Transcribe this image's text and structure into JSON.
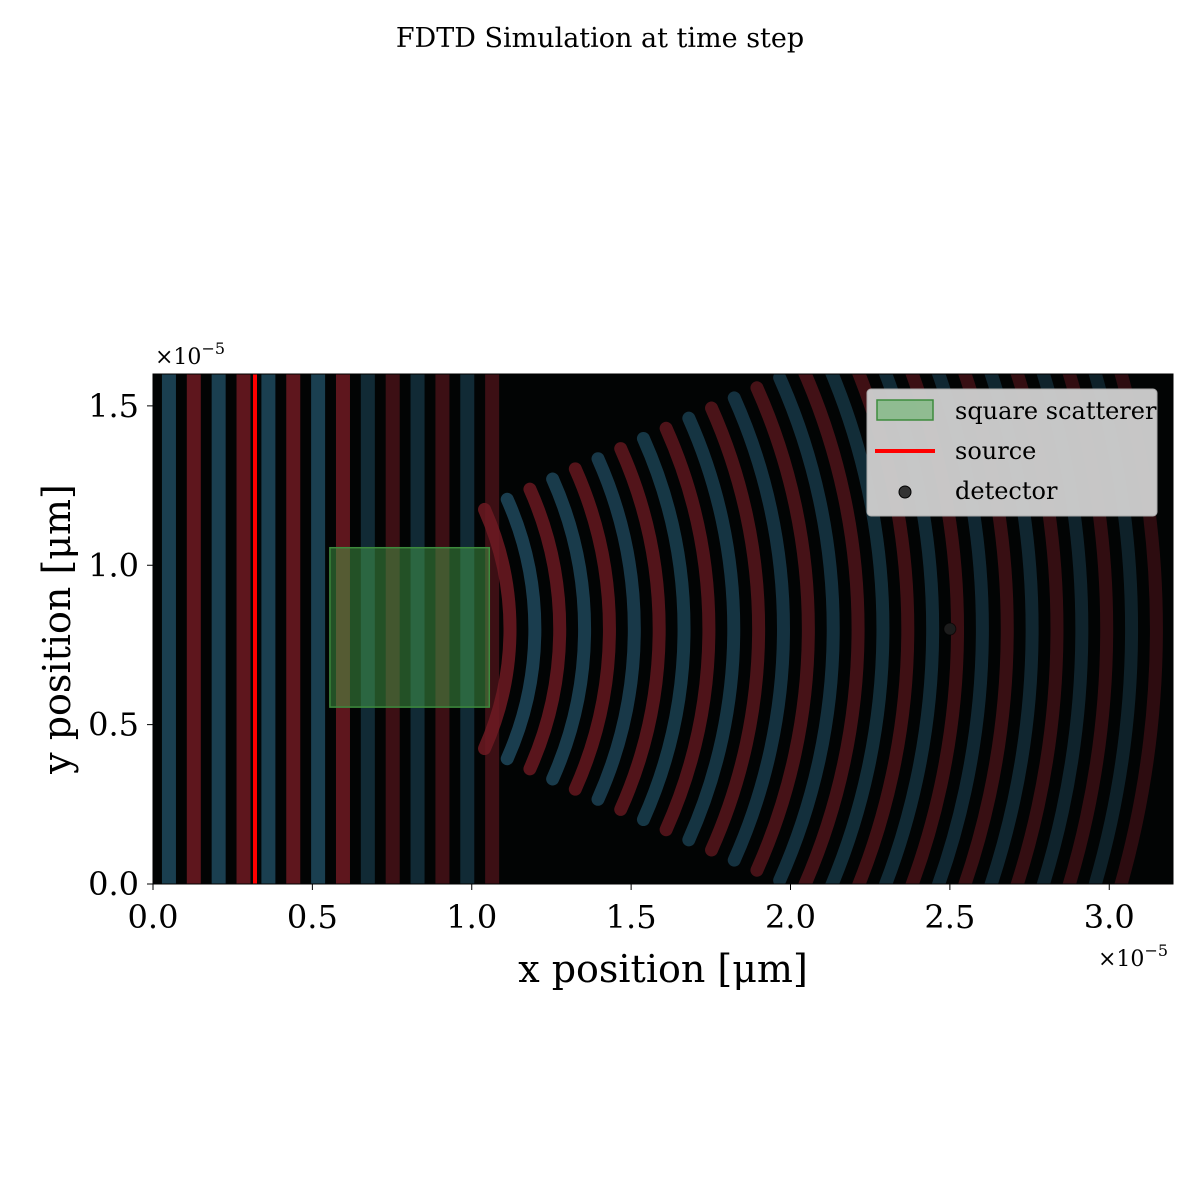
{
  "chart_data": {
    "type": "heatmap",
    "title": "FDTD Simulation at time step",
    "xlabel": "x position [μm]",
    "ylabel": "y position [μm]",
    "x_offset_label": "×10",
    "x_offset_exp": "−5",
    "y_offset_label": "×10",
    "y_offset_exp": "−5",
    "xlim": [
      0.0,
      3.2
    ],
    "ylim": [
      0.0,
      1.6
    ],
    "xticks": [
      0.0,
      0.5,
      1.0,
      1.5,
      2.0,
      2.5,
      3.0
    ],
    "xtick_labels": [
      "0.0",
      "0.5",
      "1.0",
      "1.5",
      "2.0",
      "2.5",
      "3.0"
    ],
    "yticks": [
      0.0,
      0.5,
      1.0,
      1.5
    ],
    "ytick_labels": [
      "0.0",
      "0.5",
      "1.0",
      "1.5"
    ],
    "field": {
      "colormap": "diverging red/blue on black",
      "positive_color": "#6e1a22",
      "negative_color": "#1f4a5e",
      "wave_direction": "+x",
      "wavelength": 0.156
    },
    "source": {
      "label": "source",
      "x": 0.32,
      "y_range": [
        0.0,
        1.6
      ],
      "color": "#ff0000"
    },
    "scatterer": {
      "label": "square scatterer",
      "x": [
        0.555,
        1.055
      ],
      "y": [
        0.555,
        1.055
      ],
      "color": "#4caf50"
    },
    "detector": {
      "label": "detector",
      "x": 2.5,
      "y": 0.8,
      "color": "#222222"
    },
    "legend": {
      "position": "upper right",
      "entries": [
        "square scatterer",
        "source",
        "detector"
      ]
    },
    "grid": false
  }
}
